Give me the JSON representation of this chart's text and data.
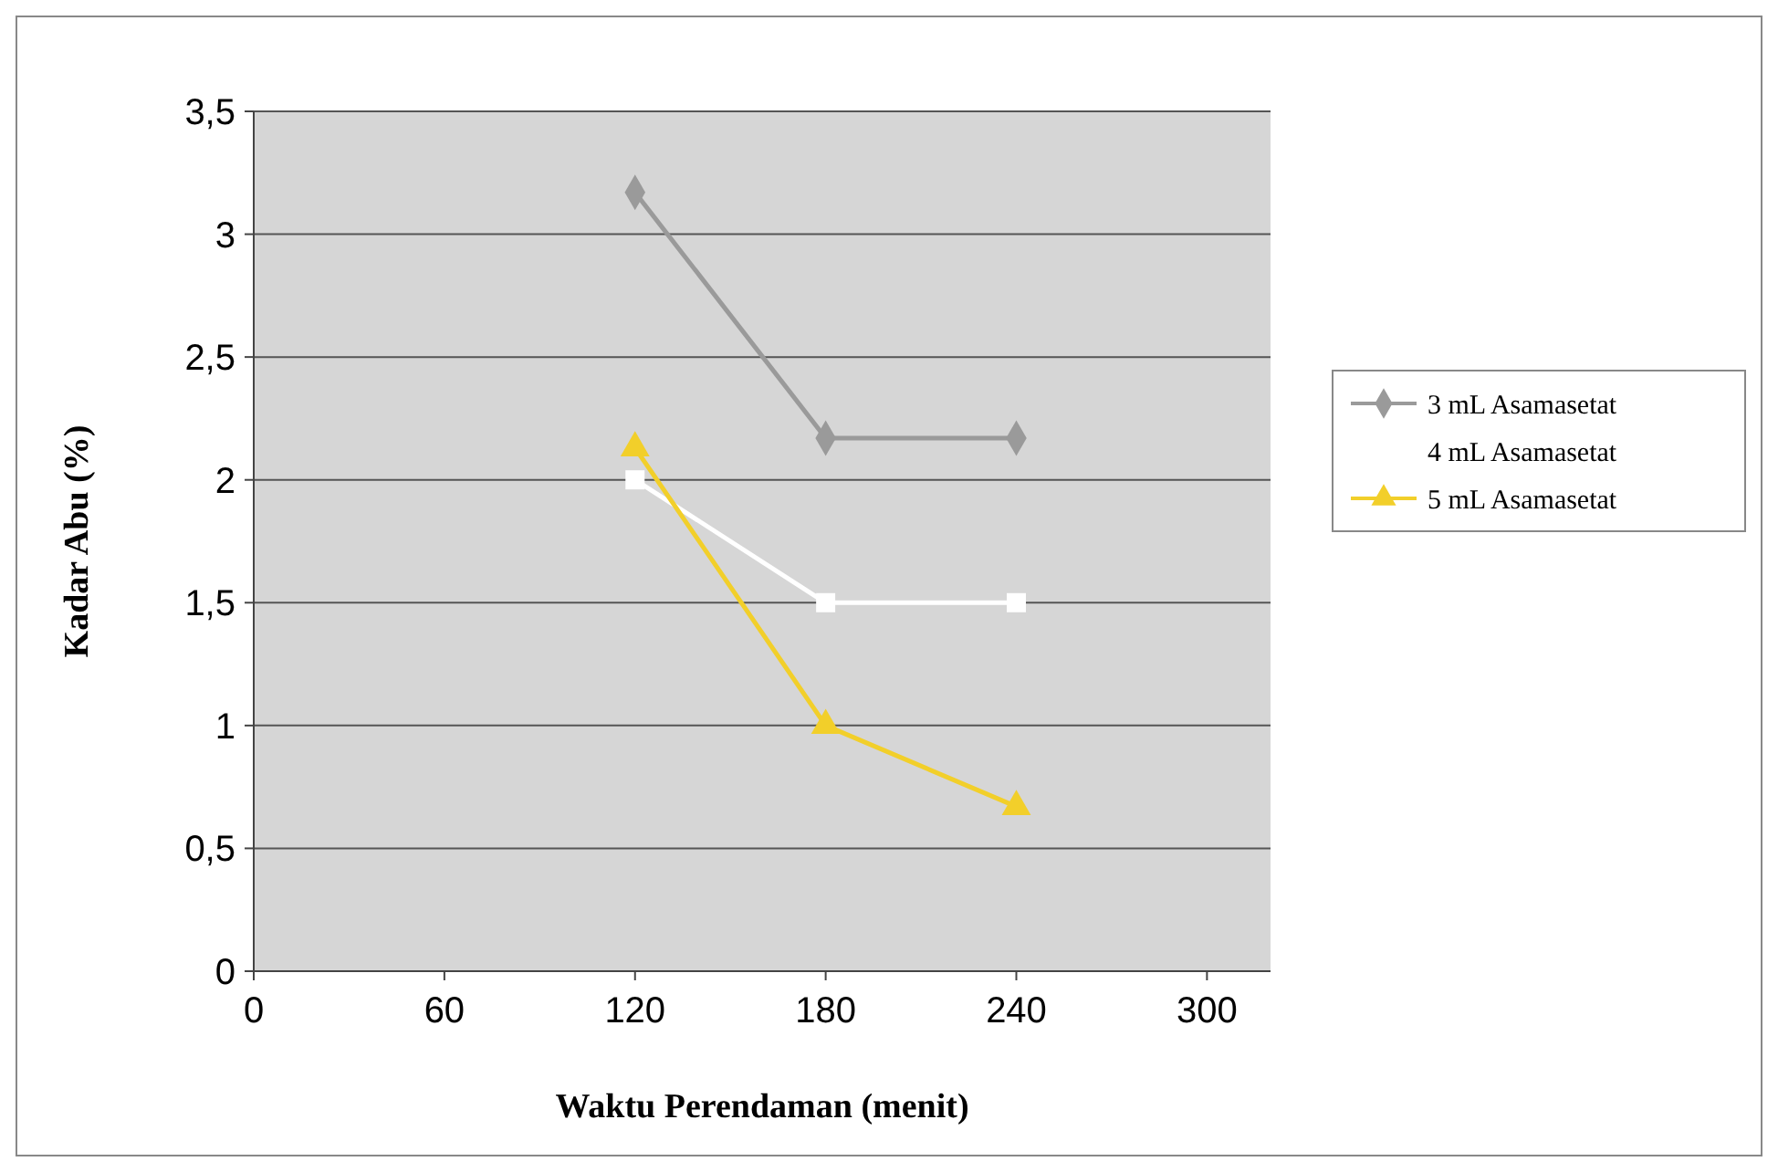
{
  "chart_data": {
    "type": "line",
    "xlabel": "Waktu Perendaman (menit)",
    "ylabel": "Kadar Abu (%)",
    "x": [
      120,
      180,
      240
    ],
    "series": [
      {
        "name": "3 mL Asamasetat",
        "color": "#9a9a9a",
        "marker": "diamond",
        "values": [
          3.17,
          2.17,
          2.17
        ]
      },
      {
        "name": "4 mL Asamasetat",
        "color": "#ffffff",
        "marker": "square",
        "values": [
          2.0,
          1.5,
          1.5
        ]
      },
      {
        "name": "5 mL Asamasetat",
        "color": "#f2cf2a",
        "marker": "triangle",
        "values": [
          2.13,
          1.0,
          0.67
        ]
      }
    ],
    "xlim": [
      0,
      320
    ],
    "xticks": [
      0,
      60,
      120,
      180,
      240,
      300
    ],
    "ylim": [
      0,
      3.5
    ],
    "yticks": [
      {
        "value": 0,
        "label": "0"
      },
      {
        "value": 0.5,
        "label": "0,5"
      },
      {
        "value": 1,
        "label": "1"
      },
      {
        "value": 1.5,
        "label": "1,5"
      },
      {
        "value": 2,
        "label": "2"
      },
      {
        "value": 2.5,
        "label": "2,5"
      },
      {
        "value": 3,
        "label": "3"
      },
      {
        "value": 3.5,
        "label": "3,5"
      }
    ],
    "grid": "y",
    "legend": "right",
    "line_style": "solid"
  }
}
